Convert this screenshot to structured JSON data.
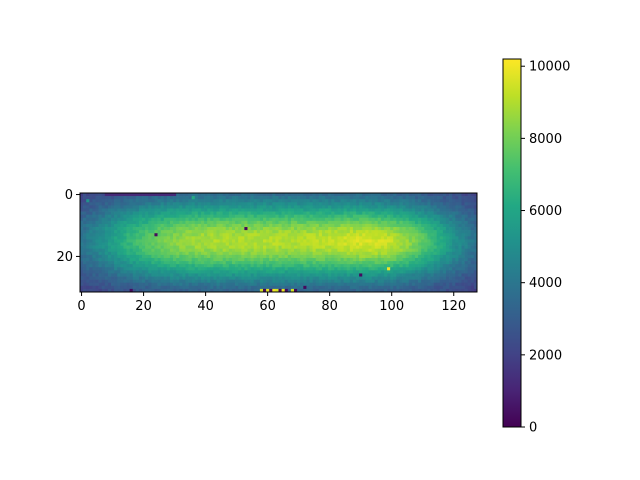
{
  "chart_data": {
    "type": "heatmap",
    "title": "",
    "xlabel": "",
    "ylabel": "",
    "rows": 32,
    "cols": 128,
    "x_ticks": [
      0,
      20,
      40,
      60,
      80,
      100,
      120
    ],
    "y_ticks": [
      0,
      20
    ],
    "x_range": [
      -0.5,
      127.5
    ],
    "y_range": [
      -0.5,
      31.5
    ],
    "colormap": "viridis",
    "color_range": [
      0,
      10200
    ],
    "colorbar_ticks": [
      0,
      2000,
      4000,
      6000,
      8000,
      10000
    ],
    "field": {
      "background": 1500,
      "peak": 9000,
      "center_x": 63,
      "center_y": 15,
      "sigma_x": 42,
      "sigma_y": 9.5,
      "secondary_blob": {
        "x": 100,
        "y": 16,
        "sigma_x": 12,
        "sigma_y": 6,
        "amplitude": 1200
      },
      "top_left_dark_band": {
        "x_start": 8,
        "x_end": 30,
        "row": 0,
        "value": 1200
      }
    },
    "outlier_pixels": [
      {
        "x": 2,
        "y": 2,
        "value": 5200
      },
      {
        "x": 36,
        "y": 1,
        "value": 6200
      },
      {
        "x": 24,
        "y": 13,
        "value": 300
      },
      {
        "x": 53,
        "y": 11,
        "value": 200
      },
      {
        "x": 90,
        "y": 26,
        "value": 300
      },
      {
        "x": 99,
        "y": 24,
        "value": 10000
      },
      {
        "x": 72,
        "y": 30,
        "value": 300
      },
      {
        "x": 16,
        "y": 31,
        "value": 300
      },
      {
        "x": 58,
        "y": 31,
        "value": 9500
      },
      {
        "x": 59,
        "y": 31,
        "value": 200
      },
      {
        "x": 60,
        "y": 31,
        "value": 9800
      },
      {
        "x": 61,
        "y": 31,
        "value": 300
      },
      {
        "x": 62,
        "y": 31,
        "value": 10000
      },
      {
        "x": 63,
        "y": 31,
        "value": 9600
      },
      {
        "x": 64,
        "y": 31,
        "value": 200
      },
      {
        "x": 65,
        "y": 31,
        "value": 9900
      },
      {
        "x": 66,
        "y": 31,
        "value": 300
      },
      {
        "x": 68,
        "y": 31,
        "value": 9500
      },
      {
        "x": 69,
        "y": 31,
        "value": 200
      }
    ]
  }
}
